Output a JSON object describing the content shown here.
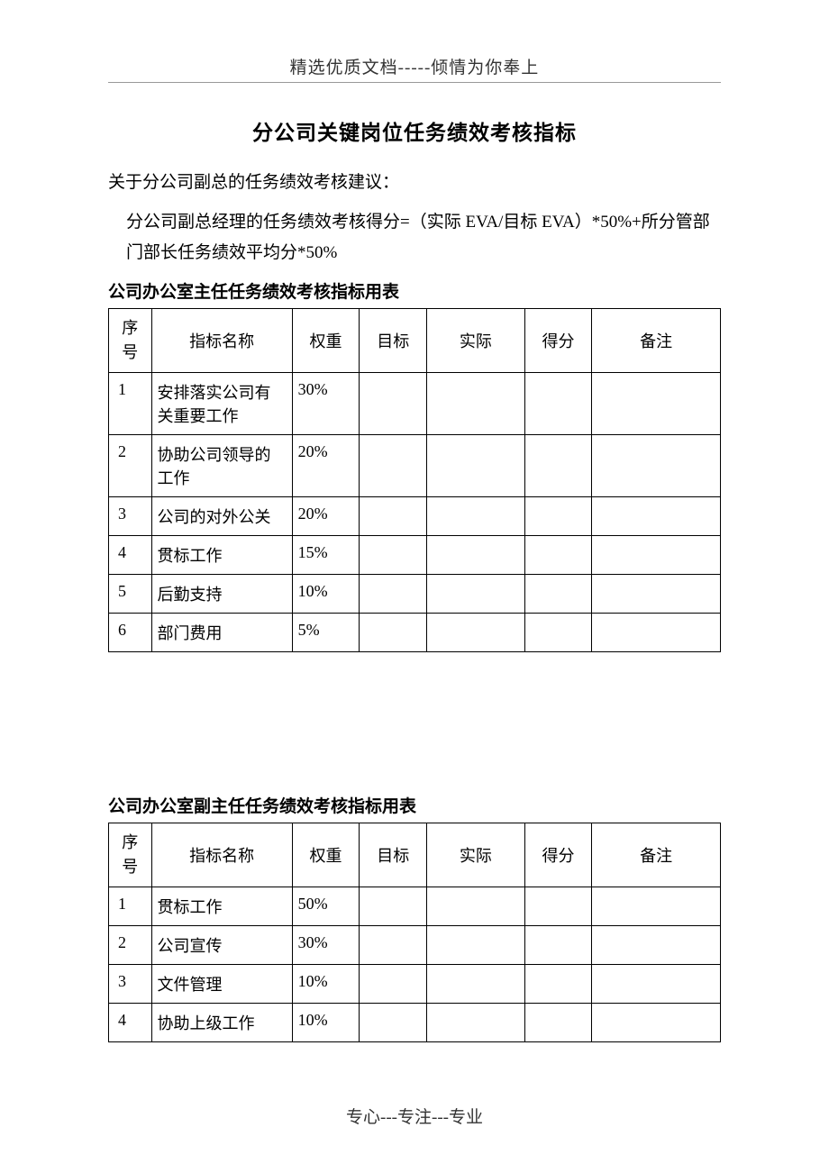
{
  "header": {
    "text": "精选优质文档-----倾情为你奉上"
  },
  "mainTitle": "分公司关键岗位任务绩效考核指标",
  "intro": {
    "line1": "关于分公司副总的任务绩效考核建议：",
    "line2": "分公司副总经理的任务绩效考核得分=（实际 EVA/目标 EVA）*50%+所分管部门部长任务绩效平均分*50%"
  },
  "table1": {
    "title": "公司办公室主任任务绩效考核指标用表",
    "columns": {
      "seq1": "序",
      "seq2": "号",
      "name": "指标名称",
      "weight": "权重",
      "target": "目标",
      "actual": "实际",
      "score": "得分",
      "remark": "备注"
    },
    "rows": [
      {
        "seq": "1",
        "name": "安排落实公司有关重要工作",
        "weight": "30%",
        "target": "",
        "actual": "",
        "score": "",
        "remark": ""
      },
      {
        "seq": "2",
        "name": "协助公司领导的工作",
        "weight": "20%",
        "target": "",
        "actual": "",
        "score": "",
        "remark": ""
      },
      {
        "seq": "3",
        "name": "公司的对外公关",
        "weight": "20%",
        "target": "",
        "actual": "",
        "score": "",
        "remark": ""
      },
      {
        "seq": "4",
        "name": "贯标工作",
        "weight": "15%",
        "target": "",
        "actual": "",
        "score": "",
        "remark": ""
      },
      {
        "seq": "5",
        "name": "后勤支持",
        "weight": "10%",
        "target": "",
        "actual": "",
        "score": "",
        "remark": ""
      },
      {
        "seq": "6",
        "name": "部门费用",
        "weight": "5%",
        "target": "",
        "actual": "",
        "score": "",
        "remark": ""
      }
    ]
  },
  "table2": {
    "title": "公司办公室副主任任务绩效考核指标用表",
    "columns": {
      "seq1": "序",
      "seq2": "号",
      "name": "指标名称",
      "weight": "权重",
      "target": "目标",
      "actual": "实际",
      "score": "得分",
      "remark": "备注"
    },
    "rows": [
      {
        "seq": "1",
        "name": "贯标工作",
        "weight": "50%",
        "target": "",
        "actual": "",
        "score": "",
        "remark": ""
      },
      {
        "seq": "2",
        "name": "公司宣传",
        "weight": "30%",
        "target": "",
        "actual": "",
        "score": "",
        "remark": ""
      },
      {
        "seq": "3",
        "name": "文件管理",
        "weight": "10%",
        "target": "",
        "actual": "",
        "score": "",
        "remark": ""
      },
      {
        "seq": "4",
        "name": "协助上级工作",
        "weight": "10%",
        "target": "",
        "actual": "",
        "score": "",
        "remark": ""
      }
    ]
  },
  "footer": {
    "text": "专心---专注---专业"
  }
}
